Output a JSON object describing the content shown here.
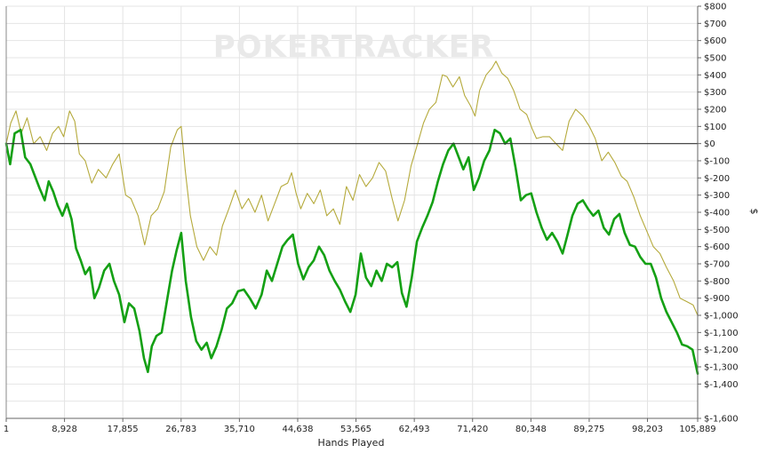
{
  "watermark": {
    "text": "POKERTRACKER"
  },
  "chart_data": {
    "type": "line",
    "title": "",
    "xlabel": "Hands Played",
    "ylabel": "$",
    "xlim": [
      1,
      105889
    ],
    "ylim": [
      -1600,
      800
    ],
    "grid": true,
    "legend": "none",
    "x_ticks": [
      {
        "value": 1,
        "label": "1"
      },
      {
        "value": 8928,
        "label": "8,928"
      },
      {
        "value": 17855,
        "label": "17,855"
      },
      {
        "value": 26783,
        "label": "26,783"
      },
      {
        "value": 35710,
        "label": "35,710"
      },
      {
        "value": 44638,
        "label": "44,638"
      },
      {
        "value": 53565,
        "label": "53,565"
      },
      {
        "value": 62493,
        "label": "62,493"
      },
      {
        "value": 71420,
        "label": "71,420"
      },
      {
        "value": 80348,
        "label": "80,348"
      },
      {
        "value": 89275,
        "label": "89,275"
      },
      {
        "value": 98203,
        "label": "98,203"
      },
      {
        "value": 105889,
        "label": "105,889"
      }
    ],
    "y_ticks": [
      {
        "value": 800,
        "label": "$800"
      },
      {
        "value": 700,
        "label": "$700"
      },
      {
        "value": 600,
        "label": "$600"
      },
      {
        "value": 500,
        "label": "$500"
      },
      {
        "value": 400,
        "label": "$400"
      },
      {
        "value": 300,
        "label": "$300"
      },
      {
        "value": 200,
        "label": "$200"
      },
      {
        "value": 100,
        "label": "$100"
      },
      {
        "value": 0,
        "label": "$0"
      },
      {
        "value": -100,
        "label": "$-100"
      },
      {
        "value": -200,
        "label": "$-200"
      },
      {
        "value": -300,
        "label": "$-300"
      },
      {
        "value": -400,
        "label": "$-400"
      },
      {
        "value": -500,
        "label": "$-500"
      },
      {
        "value": -600,
        "label": "$-600"
      },
      {
        "value": -700,
        "label": "$-700"
      },
      {
        "value": -800,
        "label": "$-800"
      },
      {
        "value": -900,
        "label": "$-900"
      },
      {
        "value": -1000,
        "label": "$-1,000"
      },
      {
        "value": -1100,
        "label": "$-1,100"
      },
      {
        "value": -1200,
        "label": "$-1,200"
      },
      {
        "value": -1300,
        "label": "$-1,300"
      },
      {
        "value": -1400,
        "label": "$-1,400"
      },
      {
        "value": -1600,
        "label": "$-1,600"
      }
    ],
    "series": [
      {
        "color": "#b5aa3c",
        "stroke": "thin",
        "points": [
          [
            1,
            0
          ],
          [
            700,
            120
          ],
          [
            1500,
            190
          ],
          [
            2300,
            60
          ],
          [
            3200,
            150
          ],
          [
            4200,
            0
          ],
          [
            5200,
            40
          ],
          [
            6200,
            -40
          ],
          [
            7100,
            60
          ],
          [
            8000,
            100
          ],
          [
            8800,
            40
          ],
          [
            9700,
            190
          ],
          [
            10500,
            130
          ],
          [
            11200,
            -60
          ],
          [
            12100,
            -100
          ],
          [
            13100,
            -230
          ],
          [
            14100,
            -150
          ],
          [
            15300,
            -200
          ],
          [
            16300,
            -120
          ],
          [
            17300,
            -60
          ],
          [
            18300,
            -300
          ],
          [
            19100,
            -320
          ],
          [
            20200,
            -420
          ],
          [
            21200,
            -590
          ],
          [
            22200,
            -420
          ],
          [
            23200,
            -380
          ],
          [
            24200,
            -280
          ],
          [
            25200,
            -20
          ],
          [
            26200,
            80
          ],
          [
            26800,
            100
          ],
          [
            27400,
            -150
          ],
          [
            28200,
            -420
          ],
          [
            29200,
            -600
          ],
          [
            30200,
            -680
          ],
          [
            31200,
            -600
          ],
          [
            32200,
            -650
          ],
          [
            33100,
            -480
          ],
          [
            34100,
            -380
          ],
          [
            35100,
            -270
          ],
          [
            36100,
            -380
          ],
          [
            37100,
            -320
          ],
          [
            38100,
            -400
          ],
          [
            39100,
            -300
          ],
          [
            40100,
            -450
          ],
          [
            41100,
            -350
          ],
          [
            42100,
            -250
          ],
          [
            43100,
            -230
          ],
          [
            43700,
            -170
          ],
          [
            44400,
            -290
          ],
          [
            45100,
            -380
          ],
          [
            46100,
            -290
          ],
          [
            47100,
            -350
          ],
          [
            48100,
            -270
          ],
          [
            49100,
            -420
          ],
          [
            50100,
            -380
          ],
          [
            51100,
            -470
          ],
          [
            52100,
            -250
          ],
          [
            53100,
            -330
          ],
          [
            54100,
            -180
          ],
          [
            55100,
            -250
          ],
          [
            56100,
            -200
          ],
          [
            57100,
            -110
          ],
          [
            58100,
            -160
          ],
          [
            59100,
            -320
          ],
          [
            60000,
            -450
          ],
          [
            61000,
            -330
          ],
          [
            62000,
            -130
          ],
          [
            63000,
            0
          ],
          [
            63900,
            120
          ],
          [
            64800,
            200
          ],
          [
            65800,
            240
          ],
          [
            66800,
            400
          ],
          [
            67500,
            390
          ],
          [
            68400,
            330
          ],
          [
            69400,
            390
          ],
          [
            70200,
            280
          ],
          [
            71100,
            220
          ],
          [
            71800,
            160
          ],
          [
            72500,
            310
          ],
          [
            73500,
            400
          ],
          [
            74400,
            440
          ],
          [
            75000,
            480
          ],
          [
            75900,
            410
          ],
          [
            76800,
            380
          ],
          [
            77700,
            310
          ],
          [
            78700,
            200
          ],
          [
            79700,
            170
          ],
          [
            80500,
            90
          ],
          [
            81200,
            30
          ],
          [
            82200,
            40
          ],
          [
            83200,
            40
          ],
          [
            84200,
            0
          ],
          [
            85200,
            -40
          ],
          [
            86200,
            130
          ],
          [
            87200,
            200
          ],
          [
            88300,
            160
          ],
          [
            89300,
            100
          ],
          [
            90200,
            30
          ],
          [
            91200,
            -100
          ],
          [
            92200,
            -50
          ],
          [
            93200,
            -110
          ],
          [
            94200,
            -190
          ],
          [
            95100,
            -220
          ],
          [
            96100,
            -310
          ],
          [
            97100,
            -420
          ],
          [
            98100,
            -510
          ],
          [
            99100,
            -600
          ],
          [
            100100,
            -640
          ],
          [
            101100,
            -720
          ],
          [
            102200,
            -800
          ],
          [
            103200,
            -900
          ],
          [
            104200,
            -920
          ],
          [
            105200,
            -940
          ],
          [
            105889,
            -1000
          ]
        ]
      },
      {
        "color": "#14a014",
        "stroke": "thick",
        "points": [
          [
            1,
            0
          ],
          [
            600,
            -120
          ],
          [
            1300,
            60
          ],
          [
            2200,
            80
          ],
          [
            2900,
            -80
          ],
          [
            3700,
            -120
          ],
          [
            4300,
            -180
          ],
          [
            5100,
            -260
          ],
          [
            5900,
            -330
          ],
          [
            6500,
            -220
          ],
          [
            7200,
            -280
          ],
          [
            7900,
            -360
          ],
          [
            8600,
            -420
          ],
          [
            9300,
            -350
          ],
          [
            10000,
            -440
          ],
          [
            10700,
            -610
          ],
          [
            11400,
            -680
          ],
          [
            12100,
            -760
          ],
          [
            12800,
            -720
          ],
          [
            13500,
            -900
          ],
          [
            14200,
            -840
          ],
          [
            15000,
            -740
          ],
          [
            15800,
            -700
          ],
          [
            16500,
            -800
          ],
          [
            17300,
            -880
          ],
          [
            18100,
            -1040
          ],
          [
            18800,
            -930
          ],
          [
            19600,
            -960
          ],
          [
            20400,
            -1090
          ],
          [
            21100,
            -1250
          ],
          [
            21700,
            -1330
          ],
          [
            22300,
            -1180
          ],
          [
            23000,
            -1120
          ],
          [
            23800,
            -1100
          ],
          [
            24600,
            -920
          ],
          [
            25400,
            -740
          ],
          [
            26100,
            -620
          ],
          [
            26800,
            -520
          ],
          [
            27500,
            -800
          ],
          [
            28300,
            -1010
          ],
          [
            29100,
            -1150
          ],
          [
            29900,
            -1200
          ],
          [
            30700,
            -1160
          ],
          [
            31400,
            -1250
          ],
          [
            32200,
            -1180
          ],
          [
            33000,
            -1080
          ],
          [
            33800,
            -960
          ],
          [
            34600,
            -930
          ],
          [
            35500,
            -860
          ],
          [
            36400,
            -850
          ],
          [
            37300,
            -900
          ],
          [
            38200,
            -960
          ],
          [
            39100,
            -880
          ],
          [
            39900,
            -740
          ],
          [
            40700,
            -800
          ],
          [
            41500,
            -700
          ],
          [
            42300,
            -600
          ],
          [
            43100,
            -560
          ],
          [
            43900,
            -530
          ],
          [
            44700,
            -700
          ],
          [
            45500,
            -790
          ],
          [
            46300,
            -720
          ],
          [
            47100,
            -680
          ],
          [
            47900,
            -600
          ],
          [
            48700,
            -650
          ],
          [
            49500,
            -740
          ],
          [
            50300,
            -800
          ],
          [
            51100,
            -850
          ],
          [
            51900,
            -920
          ],
          [
            52700,
            -980
          ],
          [
            53500,
            -880
          ],
          [
            54300,
            -640
          ],
          [
            55100,
            -780
          ],
          [
            55900,
            -830
          ],
          [
            56700,
            -740
          ],
          [
            57500,
            -800
          ],
          [
            58300,
            -700
          ],
          [
            59100,
            -720
          ],
          [
            59900,
            -690
          ],
          [
            60600,
            -870
          ],
          [
            61300,
            -950
          ],
          [
            62100,
            -780
          ],
          [
            62900,
            -570
          ],
          [
            63700,
            -490
          ],
          [
            64500,
            -420
          ],
          [
            65300,
            -340
          ],
          [
            66100,
            -220
          ],
          [
            66900,
            -120
          ],
          [
            67700,
            -40
          ],
          [
            68500,
            0
          ],
          [
            69300,
            -80
          ],
          [
            70000,
            -150
          ],
          [
            70800,
            -80
          ],
          [
            71600,
            -270
          ],
          [
            72400,
            -200
          ],
          [
            73200,
            -100
          ],
          [
            74000,
            -40
          ],
          [
            74800,
            80
          ],
          [
            75600,
            60
          ],
          [
            76400,
            0
          ],
          [
            77200,
            30
          ],
          [
            78000,
            -140
          ],
          [
            78800,
            -330
          ],
          [
            79600,
            -300
          ],
          [
            80400,
            -290
          ],
          [
            81200,
            -400
          ],
          [
            82000,
            -490
          ],
          [
            82800,
            -560
          ],
          [
            83600,
            -520
          ],
          [
            84400,
            -570
          ],
          [
            85200,
            -640
          ],
          [
            85900,
            -540
          ],
          [
            86700,
            -420
          ],
          [
            87500,
            -350
          ],
          [
            88300,
            -330
          ],
          [
            89100,
            -380
          ],
          [
            89900,
            -420
          ],
          [
            90700,
            -390
          ],
          [
            91500,
            -490
          ],
          [
            92300,
            -530
          ],
          [
            93100,
            -440
          ],
          [
            93900,
            -410
          ],
          [
            94700,
            -520
          ],
          [
            95500,
            -590
          ],
          [
            96300,
            -600
          ],
          [
            97100,
            -660
          ],
          [
            97900,
            -700
          ],
          [
            98700,
            -700
          ],
          [
            99500,
            -780
          ],
          [
            100300,
            -900
          ],
          [
            101100,
            -980
          ],
          [
            101900,
            -1040
          ],
          [
            102700,
            -1100
          ],
          [
            103500,
            -1170
          ],
          [
            104300,
            -1180
          ],
          [
            105100,
            -1200
          ],
          [
            105889,
            -1340
          ]
        ]
      }
    ]
  }
}
